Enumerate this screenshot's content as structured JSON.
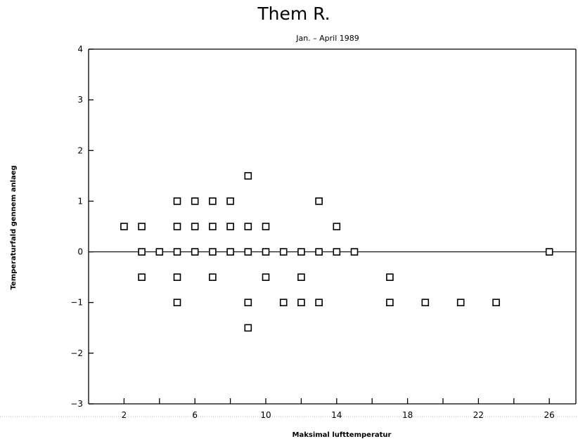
{
  "chart_data": {
    "type": "scatter",
    "title": "Them R.",
    "subtitle": "Jan. – April 1989",
    "xlabel": "Maksimal lufttemperatur",
    "ylabel": "Temperaturfald gennem anlaeg",
    "xlim": [
      0,
      27.5
    ],
    "ylim": [
      -3,
      4
    ],
    "xticks": [
      2,
      6,
      10,
      14,
      18,
      22,
      26
    ],
    "xminorticks": [
      4,
      8,
      12,
      16,
      20,
      24
    ],
    "yticks": [
      -3,
      -2,
      -1,
      0,
      1,
      2,
      3,
      4
    ],
    "ytick_labels": [
      "−3",
      "−2",
      "−1",
      "0",
      "1",
      "2",
      "3",
      "4"
    ],
    "reference_line_y": 0,
    "grid": false,
    "marker": "open-square",
    "points": [
      {
        "x": 2,
        "y": 0.5
      },
      {
        "x": 3,
        "y": 0.5
      },
      {
        "x": 3,
        "y": 0
      },
      {
        "x": 3,
        "y": -0.5
      },
      {
        "x": 4,
        "y": 0
      },
      {
        "x": 5,
        "y": 1
      },
      {
        "x": 5,
        "y": 0.5
      },
      {
        "x": 5,
        "y": 0
      },
      {
        "x": 5,
        "y": -0.5
      },
      {
        "x": 5,
        "y": -1
      },
      {
        "x": 6,
        "y": 1
      },
      {
        "x": 6,
        "y": 0.5
      },
      {
        "x": 6,
        "y": 0
      },
      {
        "x": 7,
        "y": 1
      },
      {
        "x": 7,
        "y": 0.5
      },
      {
        "x": 7,
        "y": 0
      },
      {
        "x": 7,
        "y": -0.5
      },
      {
        "x": 8,
        "y": 1
      },
      {
        "x": 8,
        "y": 0.5
      },
      {
        "x": 8,
        "y": 0
      },
      {
        "x": 9,
        "y": 1.5
      },
      {
        "x": 9,
        "y": 0.5
      },
      {
        "x": 9,
        "y": 0
      },
      {
        "x": 9,
        "y": -1
      },
      {
        "x": 9,
        "y": -1.5
      },
      {
        "x": 10,
        "y": 0.5
      },
      {
        "x": 10,
        "y": 0
      },
      {
        "x": 10,
        "y": -0.5
      },
      {
        "x": 11,
        "y": 0
      },
      {
        "x": 11,
        "y": -1
      },
      {
        "x": 12,
        "y": 0
      },
      {
        "x": 12,
        "y": -0.5
      },
      {
        "x": 12,
        "y": -1
      },
      {
        "x": 13,
        "y": 1
      },
      {
        "x": 13,
        "y": 0
      },
      {
        "x": 13,
        "y": -1
      },
      {
        "x": 14,
        "y": 0.5
      },
      {
        "x": 14,
        "y": 0
      },
      {
        "x": 15,
        "y": 0
      },
      {
        "x": 17,
        "y": -0.5
      },
      {
        "x": 17,
        "y": -1
      },
      {
        "x": 19,
        "y": -1
      },
      {
        "x": 21,
        "y": -1
      },
      {
        "x": 23,
        "y": -1
      },
      {
        "x": 26,
        "y": 0
      }
    ]
  }
}
